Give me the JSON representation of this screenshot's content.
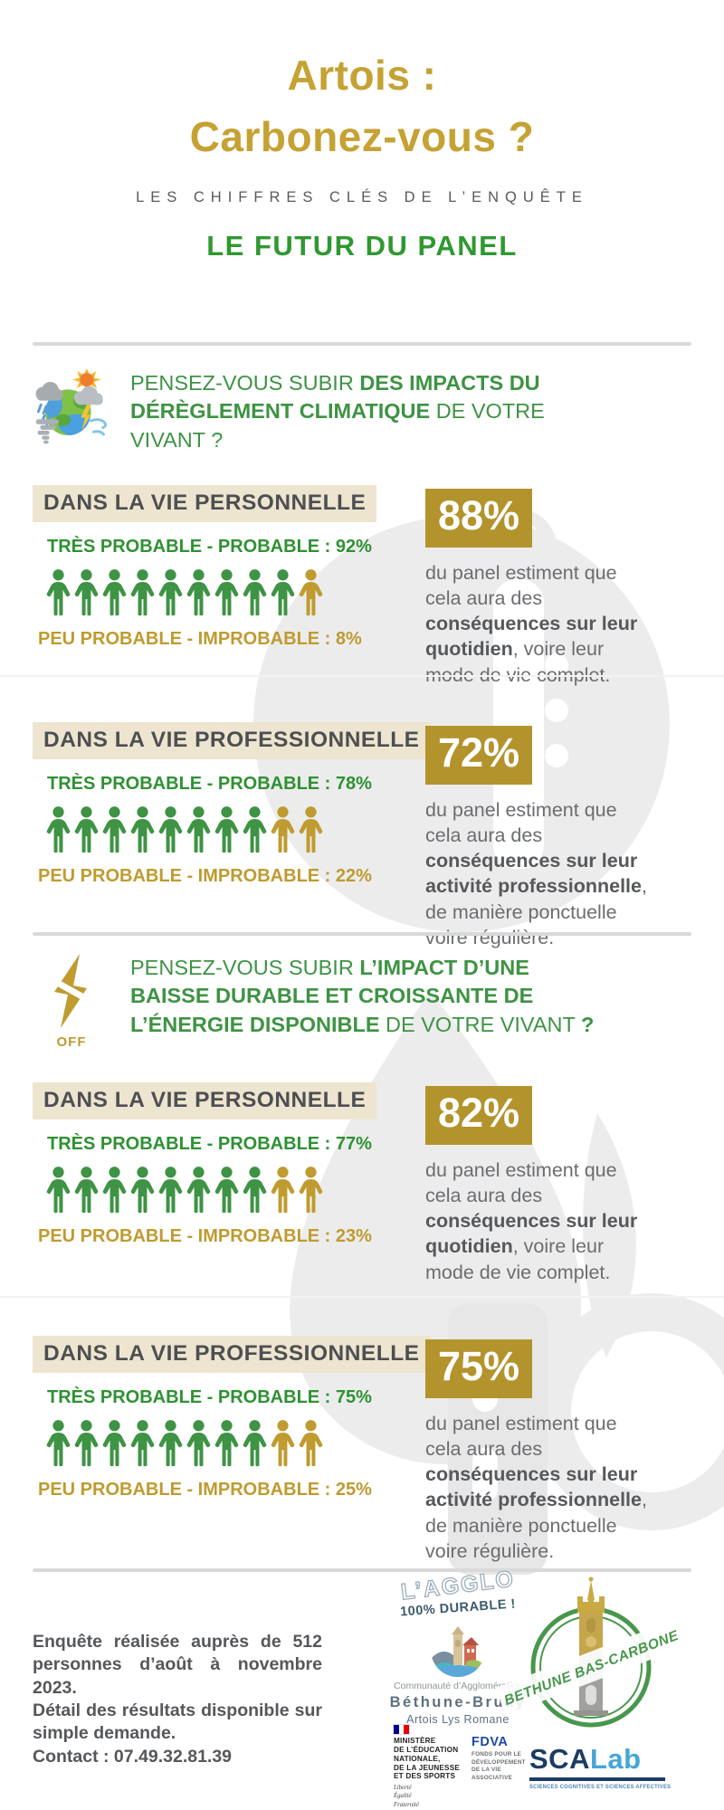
{
  "header": {
    "title_line1": "Artois :",
    "title_line2": "Carbonez-vous ?",
    "subtitle": "LES CHIFFRES CLÉS DE L’ENQUÊTE",
    "panel_title": "LE FUTUR DU PANEL"
  },
  "colors": {
    "title_gold": "#c5a233",
    "gold": "#bf9b30",
    "gold_box": "#b3932c",
    "green": "#3e9344",
    "green_dark": "#2f9133",
    "panel_green": "#2f9830",
    "beige": "#ede5cf",
    "heading_text": "#4d4f52",
    "body_text": "#6b6d70",
    "body_bold": "#56585b",
    "watermark": "#ececec"
  },
  "icons": {
    "question1": "climate-storm-icon",
    "question2": "power-off-icon"
  },
  "questions": [
    {
      "icon_caption": "",
      "segments": [
        {
          "text": "PENSEZ-VOUS SUBIR ",
          "bold": false
        },
        {
          "text": "DES IMPACTS DU\nDÉRÈGLEMENT CLIMATIQUE",
          "bold": true
        },
        {
          "text": " DE VOTRE\nVIVANT ?",
          "bold": false
        }
      ]
    },
    {
      "icon_caption": "OFF",
      "segments": [
        {
          "text": "PENSEZ-VOUS SUBIR ",
          "bold": false
        },
        {
          "text": "L’IMPACT D’UNE\nBAISSE DURABLE ET CROISSANTE  DE\nL’ÉNERGIE DISPONIBLE",
          "bold": true
        },
        {
          "text": " DE VOTRE VIVANT ",
          "bold": false
        },
        {
          "text": "?",
          "bold": true
        }
      ]
    }
  ],
  "stats": [
    {
      "context_label": "DANS LA VIE PERSONNELLE",
      "probable_label": "TRÈS PROBABLE - PROBABLE : 92%",
      "improbable_label": "PEU PROBABLE - IMPROBABLE : 8%",
      "people_green": 9,
      "people_gold": 1,
      "headline_value": "88%",
      "description": [
        {
          "text": "du panel estiment que\ncela aura des\n",
          "bold": false
        },
        {
          "text": "conséquences sur leur\nquotidien",
          "bold": true
        },
        {
          "text": ", voire leur\nmode de vie complet.",
          "bold": false
        }
      ]
    },
    {
      "context_label": "DANS LA VIE PROFESSIONNELLE",
      "probable_label": "TRÈS PROBABLE - PROBABLE : 78%",
      "improbable_label": "PEU PROBABLE - IMPROBABLE : 22%",
      "people_green": 8,
      "people_gold": 2,
      "headline_value": "72%",
      "description": [
        {
          "text": "du panel estiment que\ncela aura des\n",
          "bold": false
        },
        {
          "text": "conséquences sur leur\nactivité professionnelle",
          "bold": true
        },
        {
          "text": ",\nde manière ponctuelle\nvoire régulière.",
          "bold": false
        }
      ]
    },
    {
      "context_label": "DANS LA VIE PERSONNELLE",
      "probable_label": "TRÈS PROBABLE - PROBABLE : 77%",
      "improbable_label": "PEU PROBABLE - IMPROBABLE : 23%",
      "people_green": 8,
      "people_gold": 2,
      "headline_value": "82%",
      "description": [
        {
          "text": "du panel estiment que\ncela aura des\n",
          "bold": false
        },
        {
          "text": "conséquences sur leur\nquotidien",
          "bold": true
        },
        {
          "text": ", voire leur\nmode de vie complet.",
          "bold": false
        }
      ]
    },
    {
      "context_label": "DANS LA VIE PROFESSIONNELLE",
      "probable_label": "TRÈS PROBABLE - PROBABLE : 75%",
      "improbable_label": "PEU PROBABLE - IMPROBABLE : 25%",
      "people_green": 8,
      "people_gold": 2,
      "headline_value": "75%",
      "description": [
        {
          "text": "du panel estiment que\ncela aura des\n",
          "bold": false
        },
        {
          "text": "conséquences sur leur\nactivité professionnelle",
          "bold": true
        },
        {
          "text": ",\nde manière ponctuelle\nvoire régulière.",
          "bold": false
        }
      ]
    }
  ],
  "footer": {
    "note_lines": [
      "Enquête réalisée auprès de 512 personnes d’août à novembre 2023.",
      "Détail des résultats disponible sur simple demande.",
      "Contact : 07.49.32.81.39"
    ],
    "agglo": {
      "tagline_top": "L’AGGLO",
      "tagline_bottom": "100% DURABLE !",
      "org_small": "Communauté d’Agglomération",
      "org_name": "Béthune-Bruay",
      "org_sub": "Artois Lys Romane"
    },
    "ministry": {
      "lines": [
        "MINISTÈRE",
        "DE L’ÉDUCATION",
        "NATIONALE,",
        "DE LA JEUNESSE",
        "ET DES SPORTS"
      ],
      "motto": [
        "Liberté",
        "Égalité",
        "Fraternité"
      ]
    },
    "fdva": {
      "name": "FDVA",
      "sub_lines": [
        "FONDS POUR LE",
        "DÉVELOPPEMENT",
        "DE LA VIE",
        "ASSOCIATIVE"
      ]
    },
    "stamp": {
      "text": "BETHUNE BAS-CARBONE"
    },
    "scalab": {
      "name_strong": "SCA",
      "name_light": "Lab",
      "subtitle": "SCIENCES COGNITIVES ET SCIENCES AFFECTIVES"
    }
  }
}
